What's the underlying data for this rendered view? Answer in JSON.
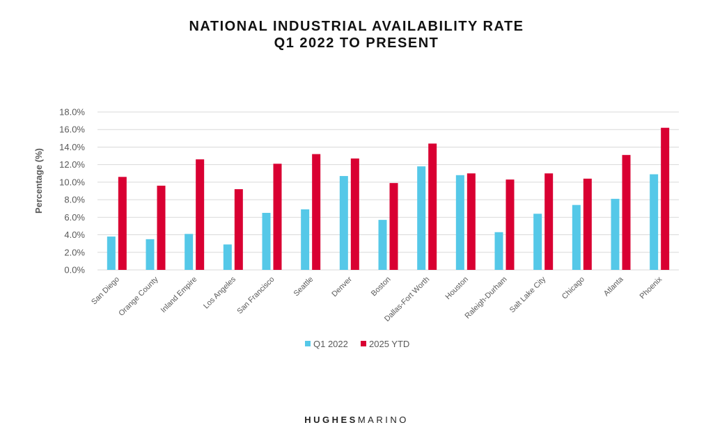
{
  "chart_data": {
    "type": "bar",
    "title": [
      "NATIONAL INDUSTRIAL AVAILABILITY RATE",
      "Q1 2022 TO PRESENT"
    ],
    "xlabel": "",
    "ylabel": "Percentage (%)",
    "ylim": [
      0,
      18
    ],
    "yticks": [
      "0.0%",
      "2.0%",
      "4.0%",
      "6.0%",
      "8.0%",
      "10.0%",
      "12.0%",
      "14.0%",
      "16.0%",
      "18.0%"
    ],
    "grid": true,
    "legend": "bottom",
    "categories": [
      "San Diego",
      "Orange County",
      "Inland Empire",
      "Los Angeles",
      "San Francisco",
      "Seattle",
      "Denver",
      "Boston",
      "Dallas-Fort Worth",
      "Houston",
      "Raleigh-Durham",
      "Salt Lake City",
      "Chicago",
      "Atlanta",
      "Phoenix"
    ],
    "series": [
      {
        "name": "Q1 2022",
        "color": "#55c8e8",
        "values": [
          3.8,
          3.5,
          4.1,
          2.9,
          6.5,
          6.9,
          10.7,
          5.7,
          11.8,
          10.8,
          4.3,
          6.4,
          7.4,
          8.1,
          10.9
        ]
      },
      {
        "name": "2025 YTD",
        "color": "#d90032",
        "values": [
          10.6,
          9.6,
          12.6,
          9.2,
          12.1,
          13.2,
          12.7,
          9.9,
          14.4,
          11.0,
          10.3,
          11.0,
          10.4,
          13.1,
          16.2
        ]
      }
    ]
  },
  "logo": {
    "part1": "HUGHES",
    "part2": "MARINO"
  }
}
